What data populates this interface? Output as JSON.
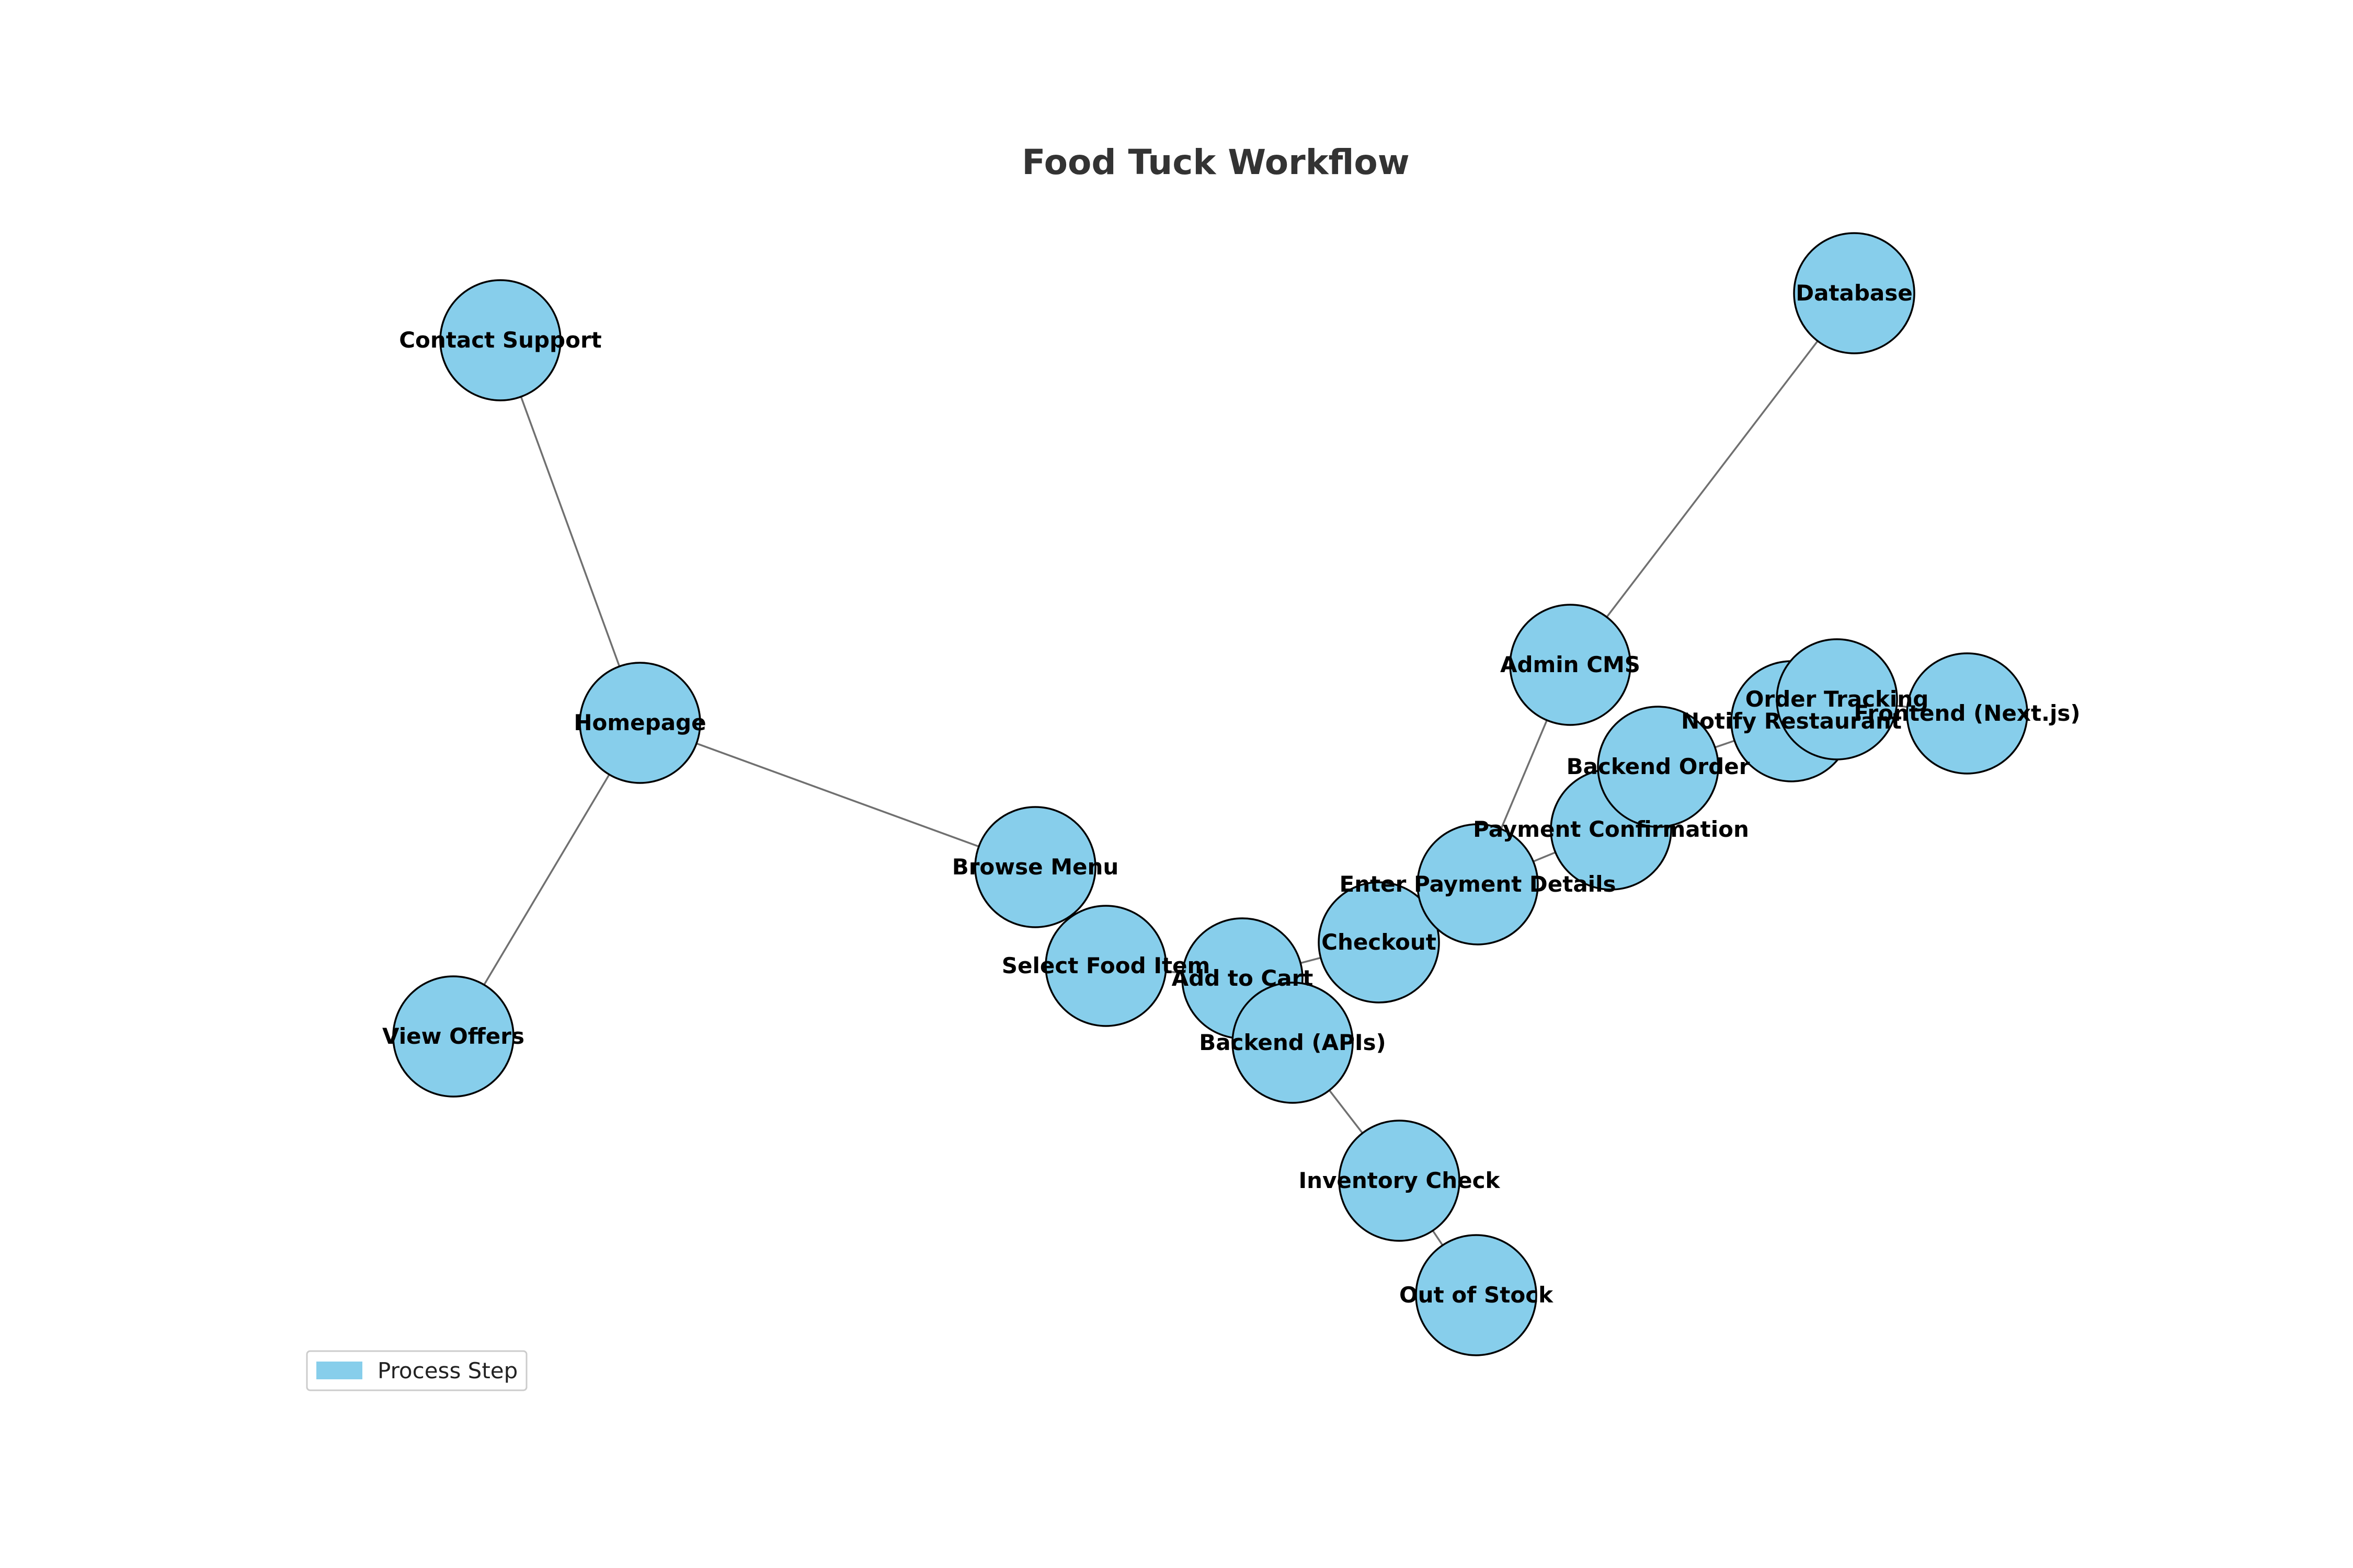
{
  "title": "Food Tuck Workflow",
  "colors": {
    "node_fill": "#87CEEB",
    "node_stroke": "#000000",
    "edge": "#707070",
    "title": "#333333"
  },
  "nodes": [
    {
      "id": "homepage",
      "label": "Homepage"
    },
    {
      "id": "contact-support",
      "label": "Contact Support"
    },
    {
      "id": "view-offers",
      "label": "View Offers"
    },
    {
      "id": "browse-menu",
      "label": "Browse Menu"
    },
    {
      "id": "select-food-item",
      "label": "Select Food Item"
    },
    {
      "id": "add-to-cart",
      "label": "Add to Cart"
    },
    {
      "id": "backend-apis",
      "label": "Backend (APIs)"
    },
    {
      "id": "inventory-check",
      "label": "Inventory Check"
    },
    {
      "id": "out-of-stock",
      "label": "Out of Stock"
    },
    {
      "id": "checkout",
      "label": "Checkout"
    },
    {
      "id": "enter-payment-details",
      "label": "Enter Payment Details"
    },
    {
      "id": "admin-cms",
      "label": "Admin CMS"
    },
    {
      "id": "database",
      "label": "Database"
    },
    {
      "id": "payment-confirmation",
      "label": "Payment Confirmation"
    },
    {
      "id": "backend-order",
      "label": "Backend Order"
    },
    {
      "id": "notify-restaurant",
      "label": "Notify Restaurant"
    },
    {
      "id": "order-tracking",
      "label": "Order Tracking"
    },
    {
      "id": "frontend-nextjs",
      "label": "Frontend (Next.js)"
    }
  ],
  "edges": [
    [
      "homepage",
      "contact-support"
    ],
    [
      "homepage",
      "view-offers"
    ],
    [
      "homepage",
      "browse-menu"
    ],
    [
      "browse-menu",
      "select-food-item"
    ],
    [
      "select-food-item",
      "add-to-cart"
    ],
    [
      "add-to-cart",
      "checkout"
    ],
    [
      "add-to-cart",
      "backend-apis"
    ],
    [
      "backend-apis",
      "inventory-check"
    ],
    [
      "inventory-check",
      "out-of-stock"
    ],
    [
      "checkout",
      "enter-payment-details"
    ],
    [
      "enter-payment-details",
      "admin-cms"
    ],
    [
      "admin-cms",
      "database"
    ],
    [
      "enter-payment-details",
      "payment-confirmation"
    ],
    [
      "payment-confirmation",
      "backend-order"
    ],
    [
      "backend-order",
      "notify-restaurant"
    ],
    [
      "notify-restaurant",
      "order-tracking"
    ],
    [
      "order-tracking",
      "frontend-nextjs"
    ]
  ],
  "legend": {
    "label": "Process Step"
  }
}
